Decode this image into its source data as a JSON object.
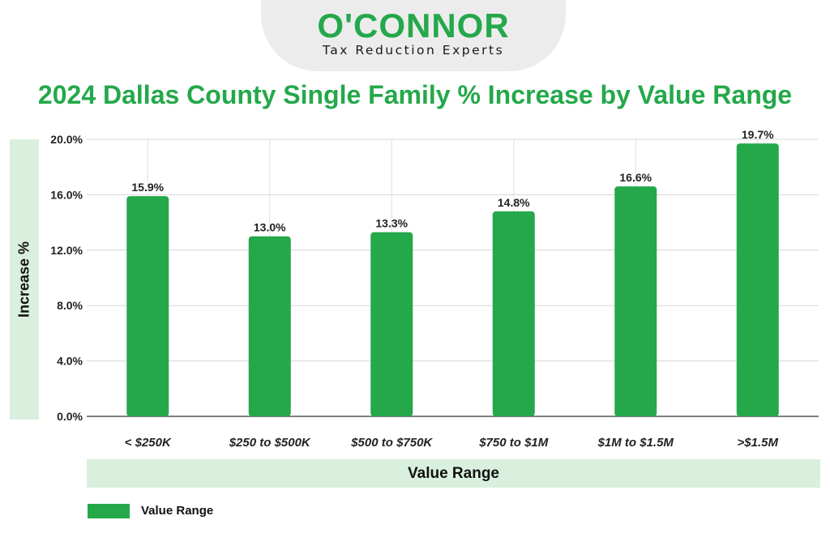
{
  "brand": {
    "name": "O'CONNOR",
    "tagline": "Tax Reduction Experts",
    "accent": "#24a84a"
  },
  "chart_data": {
    "type": "bar",
    "title": "2024 Dallas County Single Family % Increase by Value Range",
    "xlabel": "Value Range",
    "ylabel": "Increase %",
    "categories": [
      "< $250K",
      "$250 to $500K",
      "$500 to $750K",
      "$750 to $1M",
      "$1M to $1.5M",
      ">$1.5M"
    ],
    "series": [
      {
        "name": "Value Range",
        "values": [
          15.9,
          13.0,
          13.3,
          14.8,
          16.6,
          19.7
        ],
        "data_labels": [
          "15.9%",
          "13.0%",
          "13.3%",
          "14.8%",
          "16.6%",
          "19.7%"
        ],
        "color": "#24a84a"
      }
    ],
    "ylim": [
      0,
      20
    ],
    "yticks": [
      0,
      4,
      8,
      12,
      16,
      20
    ],
    "ytick_labels": [
      "0.0%",
      "4.0%",
      "8.0%",
      "12.0%",
      "16.0%",
      "20.0%"
    ],
    "grid": true,
    "legend": "bottom-left"
  }
}
